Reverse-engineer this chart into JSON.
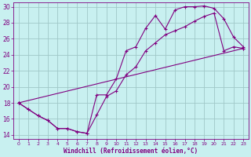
{
  "xlabel": "Windchill (Refroidissement éolien,°C)",
  "bg_color": "#c8f0f0",
  "grid_color": "#a0c8c8",
  "line_color": "#800080",
  "xlim": [
    -0.5,
    23.5
  ],
  "ylim": [
    13.5,
    30.5
  ],
  "xticks": [
    0,
    1,
    2,
    3,
    4,
    5,
    6,
    7,
    8,
    9,
    10,
    11,
    12,
    13,
    14,
    15,
    16,
    17,
    18,
    19,
    20,
    21,
    22,
    23
  ],
  "yticks": [
    14,
    16,
    18,
    20,
    22,
    24,
    26,
    28,
    30
  ],
  "line1_x": [
    0,
    1,
    2,
    3,
    4,
    5,
    6,
    7,
    8,
    9,
    10,
    11,
    12,
    13,
    14,
    15,
    16,
    17,
    18,
    19,
    20,
    21,
    22,
    23
  ],
  "line1_y": [
    18,
    17.2,
    16.4,
    15.8,
    14.8,
    14.8,
    14.4,
    14.2,
    19.0,
    19.0,
    21.0,
    24.5,
    25.0,
    27.3,
    28.9,
    27.2,
    29.6,
    30.0,
    30.0,
    30.1,
    29.8,
    28.5,
    26.2,
    25.0
  ],
  "line2_x": [
    0,
    1,
    2,
    3,
    4,
    5,
    6,
    7,
    8,
    9,
    10,
    11,
    12,
    13,
    14,
    15,
    16,
    17,
    18,
    19,
    20,
    21,
    22,
    23
  ],
  "line2_y": [
    18,
    17.2,
    16.4,
    15.8,
    14.8,
    14.8,
    14.4,
    14.2,
    16.5,
    18.8,
    19.5,
    21.5,
    22.5,
    24.5,
    25.5,
    26.5,
    27.0,
    27.5,
    28.2,
    28.8,
    29.2,
    24.5,
    25.0,
    24.8
  ],
  "line3_x": [
    0,
    23
  ],
  "line3_y": [
    18,
    24.8
  ]
}
